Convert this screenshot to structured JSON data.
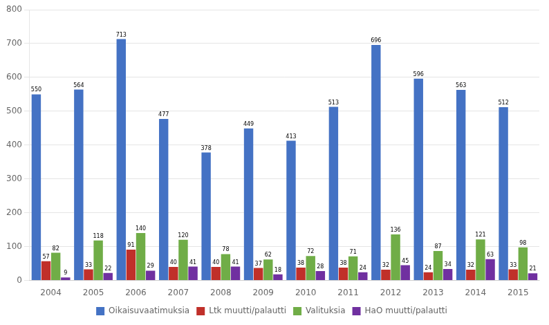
{
  "chart_data": {
    "type": "bar",
    "categories": [
      "2004",
      "2005",
      "2006",
      "2007",
      "2008",
      "2009",
      "2010",
      "2011",
      "2012",
      "2013",
      "2014",
      "2015"
    ],
    "series": [
      {
        "name": "Oikaisuvaatimuksia",
        "color": "#4472C4",
        "values": [
          550,
          564,
          713,
          477,
          378,
          449,
          413,
          513,
          696,
          596,
          563,
          512
        ]
      },
      {
        "name": "Ltk muutti/palautti",
        "color": "#C0302A",
        "values": [
          57,
          33,
          91,
          40,
          40,
          37,
          38,
          38,
          32,
          24,
          32,
          33
        ]
      },
      {
        "name": "Valituksia",
        "color": "#70AD47",
        "values": [
          82,
          118,
          140,
          120,
          78,
          62,
          72,
          71,
          136,
          87,
          121,
          98
        ]
      },
      {
        "name": "HaO muutti/palautti",
        "color": "#7030A0",
        "values": [
          9,
          22,
          29,
          41,
          41,
          18,
          28,
          24,
          45,
          34,
          63,
          21
        ]
      }
    ],
    "ylim": [
      0,
      800
    ],
    "yticks": [
      0,
      100,
      200,
      300,
      400,
      500,
      600,
      700,
      800
    ],
    "grid": true,
    "legend": "bottom",
    "data_labels": true
  }
}
